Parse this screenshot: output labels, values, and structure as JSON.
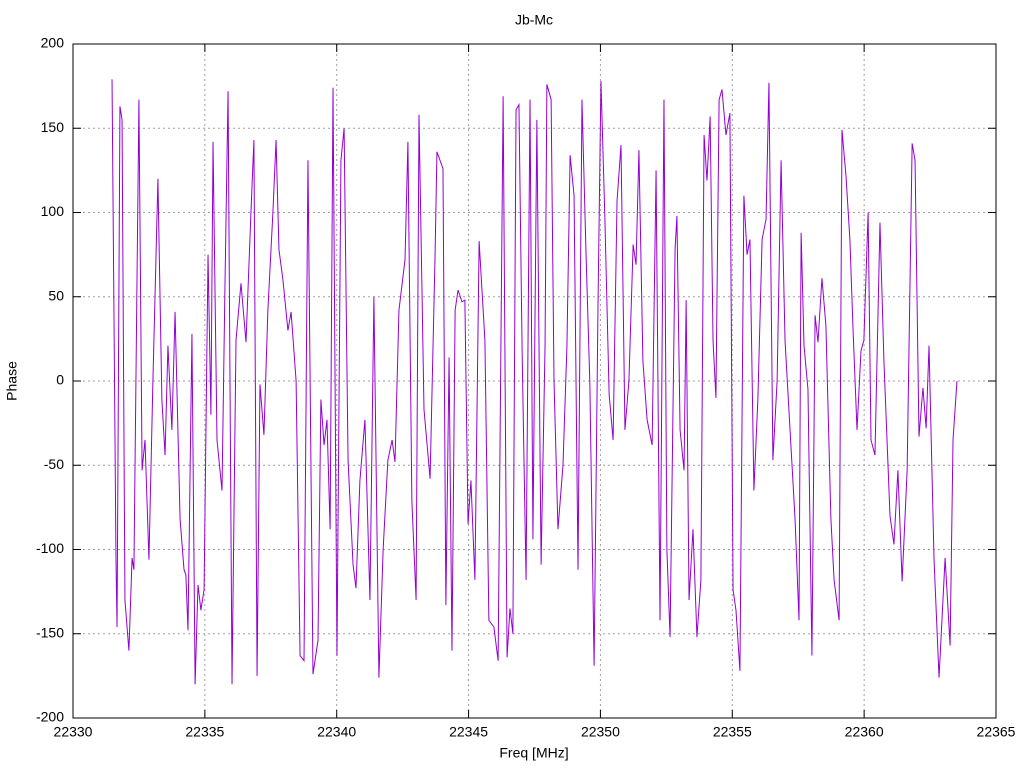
{
  "chart_data": {
    "type": "line",
    "title": "Jb-Mc",
    "x_label": "Freq [MHz]",
    "y_label": "Phase",
    "xlim": [
      22330,
      22365
    ],
    "xticks": [
      22330,
      22335,
      22340,
      22345,
      22350,
      22355,
      22360,
      22365
    ],
    "ylim": [
      -200,
      200
    ],
    "yticks": [
      -200,
      -150,
      -100,
      -50,
      0,
      50,
      100,
      150,
      200
    ],
    "grid": true,
    "series": [
      {
        "color": "#9400d3",
        "x": [
          22331.48,
          22331.63,
          22331.67,
          22331.78,
          22331.86,
          22331.97,
          22332.12,
          22332.24,
          22332.31,
          22332.5,
          22332.62,
          22332.73,
          22332.88,
          22333.03,
          22333.22,
          22333.37,
          22333.49,
          22333.6,
          22333.75,
          22333.87,
          22334.06,
          22334.21,
          22334.28,
          22334.36,
          22334.51,
          22334.63,
          22334.74,
          22334.85,
          22334.97,
          22335.12,
          22335.23,
          22335.31,
          22335.46,
          22335.65,
          22335.76,
          22335.88,
          22336.03,
          22336.18,
          22336.37,
          22336.56,
          22336.75,
          22336.86,
          22336.98,
          22337.09,
          22337.24,
          22337.39,
          22337.58,
          22337.7,
          22337.81,
          22337.96,
          22338.15,
          22338.27,
          22338.46,
          22338.61,
          22338.76,
          22338.91,
          22339.1,
          22339.29,
          22339.4,
          22339.52,
          22339.63,
          22339.75,
          22339.86,
          22340.01,
          22340.16,
          22340.28,
          22340.43,
          22340.62,
          22340.73,
          22340.88,
          22341.07,
          22341.26,
          22341.41,
          22341.6,
          22341.76,
          22341.94,
          22342.1,
          22342.21,
          22342.36,
          22342.59,
          22342.7,
          22342.85,
          22343.01,
          22343.12,
          22343.31,
          22343.54,
          22343.73,
          22343.8,
          22344.03,
          22344.14,
          22344.26,
          22344.37,
          22344.49,
          22344.6,
          22344.75,
          22344.86,
          22344.98,
          22345.09,
          22345.24,
          22345.4,
          22345.62,
          22345.77,
          22345.96,
          22346.12,
          22346.31,
          22346.46,
          22346.57,
          22346.68,
          22346.8,
          22346.91,
          22347.03,
          22347.18,
          22347.33,
          22347.44,
          22347.59,
          22347.75,
          22347.9,
          22347.97,
          22348.13,
          22348.24,
          22348.39,
          22348.58,
          22348.73,
          22348.85,
          22349,
          22349.15,
          22349.3,
          22349.45,
          22349.6,
          22349.76,
          22349.91,
          22350.02,
          22350.17,
          22350.33,
          22350.48,
          22350.63,
          22350.78,
          22350.93,
          22351.08,
          22351.24,
          22351.35,
          22351.46,
          22351.61,
          22351.77,
          22351.96,
          22352.11,
          22352.26,
          22352.41,
          22352.52,
          22352.64,
          22352.83,
          22352.9,
          22353.02,
          22353.17,
          22353.25,
          22353.36,
          22353.51,
          22353.66,
          22353.81,
          22353.93,
          22354.04,
          22354.16,
          22354.27,
          22354.38,
          22354.5,
          22354.61,
          22354.76,
          22354.91,
          22355.03,
          22355.14,
          22355.29,
          22355.44,
          22355.56,
          22355.67,
          22355.82,
          22355.97,
          22356.13,
          22356.28,
          22356.39,
          22356.54,
          22356.7,
          22356.85,
          22357,
          22357.19,
          22357.38,
          22357.53,
          22357.61,
          22357.72,
          22357.87,
          22358.02,
          22358.14,
          22358.25,
          22358.4,
          22358.55,
          22358.74,
          22358.86,
          22359.05,
          22359.16,
          22359.31,
          22359.46,
          22359.58,
          22359.73,
          22359.88,
          22359.99,
          22360.15,
          22360.26,
          22360.41,
          22360.6,
          22360.75,
          22360.98,
          22361.13,
          22361.28,
          22361.44,
          22361.63,
          22361.82,
          22361.93,
          22362.08,
          22362.23,
          22362.35,
          22362.46,
          22362.65,
          22362.84,
          22363.07,
          22363.26,
          22363.37,
          22363.52
        ],
        "values": [
          179,
          -106,
          -146,
          163,
          155,
          -130,
          -160,
          -105,
          -112,
          167,
          -53,
          -35,
          -106,
          0,
          120,
          -11,
          -44,
          21,
          -29,
          41,
          -82,
          -112,
          -115,
          -148,
          28,
          -180,
          -121,
          -136,
          -124,
          75,
          -20,
          142,
          -35,
          -65,
          54,
          172,
          -180,
          24,
          58,
          23,
          101,
          143,
          -175,
          -2,
          -32,
          42,
          100,
          143,
          78,
          60,
          30,
          41,
          0,
          -163,
          -166,
          131,
          -174,
          -154,
          -11,
          -38,
          -23,
          -88,
          174,
          -163,
          131,
          150,
          -47,
          -109,
          -123,
          -59,
          -23,
          -130,
          50,
          -176,
          -100,
          -47,
          -35,
          -48,
          42,
          72,
          142,
          -71,
          -130,
          158,
          -17,
          -58,
          75,
          136,
          126,
          -133,
          14,
          -160,
          42,
          54,
          47,
          48,
          -85,
          -59,
          -118,
          83,
          24,
          -142,
          -146,
          -166,
          169,
          -164,
          -135,
          -150,
          161,
          164,
          18,
          -118,
          167,
          -94,
          155,
          -109,
          21,
          176,
          167,
          0,
          -88,
          -50,
          21,
          134,
          110,
          -112,
          167,
          78,
          -2,
          -169,
          48,
          178,
          96,
          -8,
          -35,
          107,
          140,
          -29,
          0,
          81,
          69,
          137,
          12,
          -23,
          -38,
          125,
          -142,
          167,
          -100,
          -152,
          78,
          98,
          -29,
          -53,
          48,
          -130,
          -88,
          -152,
          -118,
          146,
          119,
          157,
          24,
          -10,
          167,
          173,
          146,
          159,
          -124,
          -136,
          -172,
          110,
          75,
          84,
          -65,
          -11,
          84,
          96,
          177,
          -47,
          0,
          131,
          24,
          -29,
          -82,
          -142,
          88,
          21,
          -5,
          -163,
          39,
          23,
          61,
          33,
          -82,
          -118,
          -142,
          149,
          122,
          84,
          30,
          -29,
          18,
          24,
          100,
          -35,
          -44,
          94,
          12,
          -80,
          -97,
          -53,
          -119,
          -53,
          141,
          131,
          -33,
          -4,
          -28,
          21,
          -106,
          -176,
          -105,
          -157,
          -35,
          0
        ]
      }
    ]
  }
}
